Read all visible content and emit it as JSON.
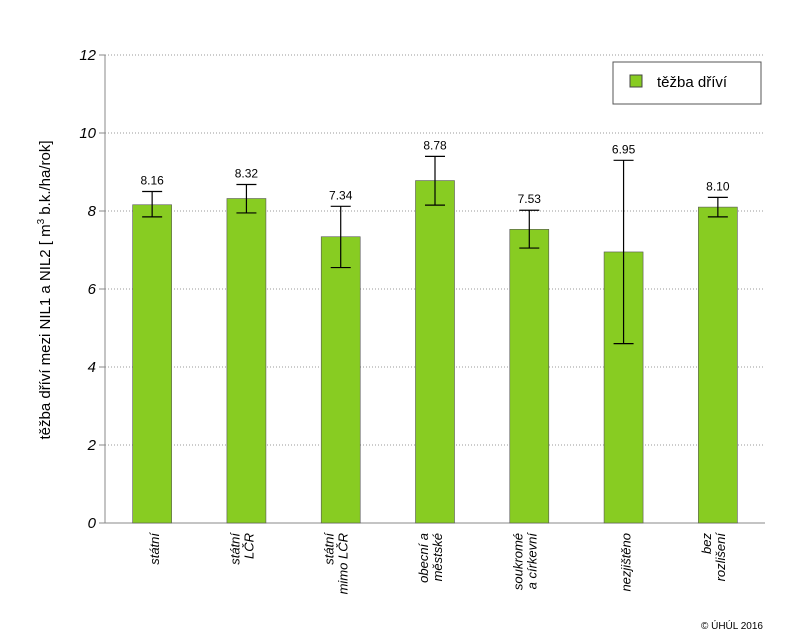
{
  "chart_data": {
    "type": "bar",
    "ylabel": "těžba dříví mezi NIL1 a NIL2 [ m3 b.k./ha/rok]",
    "ylabel_parts": {
      "before": "těžba dříví mezi NIL1 a NIL2 [ m",
      "sup": "3",
      "after": " b.k./ha/rok]"
    },
    "ylim": [
      0,
      12
    ],
    "yticks": [
      0,
      2,
      4,
      6,
      8,
      10,
      12
    ],
    "grid": true,
    "legend": {
      "position": "top-right",
      "entries": [
        "těžba dříví"
      ]
    },
    "categories": [
      [
        "státní"
      ],
      [
        "státní",
        "LČR"
      ],
      [
        "státní",
        "mimo LČR"
      ],
      [
        "obecní a",
        "městské"
      ],
      [
        "soukromé",
        "a církevní"
      ],
      [
        "nezjištěno"
      ],
      [
        "bez",
        "rozlišení"
      ]
    ],
    "series": [
      {
        "values": [
          8.16,
          8.32,
          7.34,
          8.78,
          7.53,
          6.95,
          8.1
        ],
        "labels": [
          "8.16",
          "8.32",
          "7.34",
          "8.78",
          "7.53",
          "6.95",
          "8.10"
        ],
        "error_low": [
          7.85,
          7.95,
          6.55,
          8.15,
          7.05,
          4.6,
          7.85
        ],
        "error_high": [
          8.5,
          8.68,
          8.12,
          9.4,
          8.02,
          9.3,
          8.35
        ],
        "color": "#88cc22"
      }
    ]
  },
  "copyright": "© ÚHÚL 2016"
}
